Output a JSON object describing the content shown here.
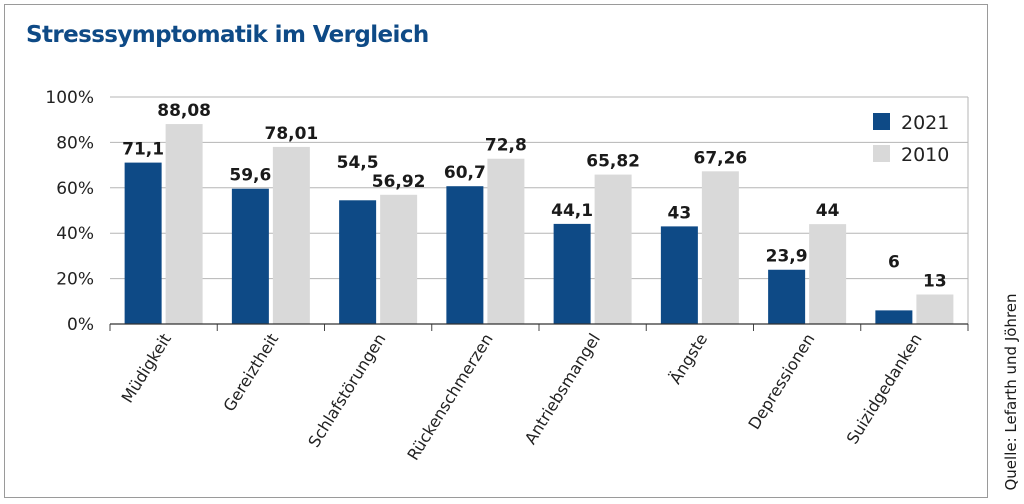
{
  "title": "Stresssymptomatik im Vergleich",
  "source": "Quelle: Lefarth und Jöhren",
  "colors": {
    "2021": "#0e4a86",
    "2010": "#d9d9d9",
    "title": "#0e4a86",
    "grid": "#b5b5b5"
  },
  "chart_data": {
    "type": "bar",
    "title": "Stresssymptomatik im Vergleich",
    "xlabel": "",
    "ylabel": "",
    "ylim": [
      0,
      100
    ],
    "yticks": [
      "0%",
      "20%",
      "40%",
      "60%",
      "80%",
      "100%"
    ],
    "grid": true,
    "legend_position": "top-right",
    "categories": [
      "Müdigkeit",
      "Gereiztheit",
      "Schlafstörungen",
      "Rückenschmerzen",
      "Antriebsmangel",
      "Ängste",
      "Depressionen",
      "Suizidgedanken"
    ],
    "series": [
      {
        "name": "2021",
        "values": [
          71.1,
          59.6,
          54.5,
          60.7,
          44.1,
          43,
          23.9,
          6
        ],
        "labels": [
          "71,1",
          "59,6",
          "54,5",
          "60,7",
          "44,1",
          "43",
          "23,9",
          "6"
        ]
      },
      {
        "name": "2010",
        "values": [
          88.08,
          78.01,
          56.92,
          72.8,
          65.82,
          67.26,
          44,
          13
        ],
        "labels": [
          "88,08",
          "78,01",
          "56,92",
          "72,8",
          "65,82",
          "67,26",
          "44",
          "13"
        ]
      }
    ]
  }
}
